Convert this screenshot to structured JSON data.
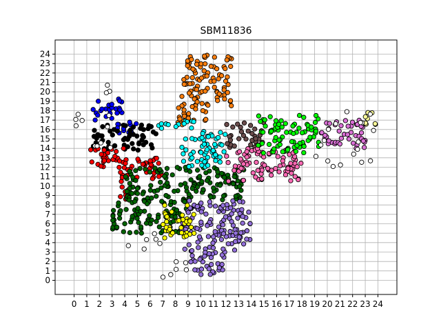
{
  "chart_data": {
    "type": "scatter",
    "title": "SBM11836",
    "xlabel": "",
    "ylabel": "",
    "xlim": [
      -1.5,
      25.5
    ],
    "ylim": [
      -1.5,
      25.5
    ],
    "xticks": [
      0,
      1,
      2,
      3,
      4,
      5,
      6,
      7,
      8,
      9,
      10,
      11,
      12,
      13,
      14,
      15,
      16,
      17,
      18,
      19,
      20,
      21,
      22,
      23,
      24
    ],
    "yticks": [
      0,
      1,
      2,
      3,
      4,
      5,
      6,
      7,
      8,
      9,
      10,
      11,
      12,
      13,
      14,
      15,
      16,
      17,
      18,
      19,
      20,
      21,
      22,
      23,
      24
    ],
    "grid": true,
    "marker_edge_color": "#000000",
    "series": [
      {
        "color": "#0000ff",
        "regions": [
          [
            1.5,
            4.0,
            17.0,
            19.3
          ],
          [
            3.0,
            5.0,
            15.5,
            17.0
          ]
        ]
      },
      {
        "color": "#000000",
        "regions": [
          [
            1.5,
            6.5,
            13.8,
            16.5
          ]
        ]
      },
      {
        "color": "#ff0000",
        "regions": [
          [
            1.0,
            4.0,
            12.0,
            14.0
          ],
          [
            3.5,
            7.0,
            10.5,
            13.0
          ],
          [
            3.5,
            4.5,
            8.5,
            10.5
          ]
        ]
      },
      {
        "color": "#006400",
        "regions": [
          [
            4.0,
            13.5,
            8.5,
            12.0
          ],
          [
            3.0,
            9.0,
            5.0,
            8.5
          ]
        ]
      },
      {
        "color": "#ff7f0e",
        "regions": [
          [
            8.5,
            12.5,
            18.5,
            24.0
          ],
          [
            8.0,
            10.5,
            16.5,
            18.5
          ]
        ]
      },
      {
        "color": "#00ffff",
        "regions": [
          [
            6.5,
            9.5,
            16.0,
            17.0
          ],
          [
            8.5,
            12.0,
            12.0,
            16.0
          ]
        ]
      },
      {
        "color": "#6b4c4c",
        "regions": [
          [
            12.0,
            15.0,
            14.0,
            16.8
          ]
        ]
      },
      {
        "color": "#ff69b4",
        "regions": [
          [
            12.0,
            18.0,
            10.5,
            14.0
          ]
        ]
      },
      {
        "color": "#00ff00",
        "regions": [
          [
            14.5,
            19.5,
            13.5,
            17.5
          ]
        ]
      },
      {
        "color": "#da70d6",
        "regions": [
          [
            19.5,
            23.0,
            14.0,
            17.0
          ]
        ]
      },
      {
        "color": "#ffff99",
        "regions": [
          [
            23.0,
            24.5,
            16.5,
            17.8
          ]
        ]
      },
      {
        "color": "#9370db",
        "regions": [
          [
            8.5,
            14.0,
            3.0,
            8.5
          ],
          [
            9.0,
            12.0,
            0.5,
            3.0
          ]
        ]
      },
      {
        "color": "#ffff00",
        "regions": [
          [
            7.0,
            9.5,
            4.5,
            8.0
          ]
        ]
      },
      {
        "color": "#ffffff",
        "regions": [
          [
            0.0,
            3.0,
            14.0,
            21.0
          ],
          [
            4.0,
            7.0,
            3.0,
            5.5
          ],
          [
            7.0,
            9.0,
            0.0,
            2.0
          ],
          [
            19.0,
            24.0,
            12.0,
            18.0
          ]
        ]
      }
    ]
  }
}
